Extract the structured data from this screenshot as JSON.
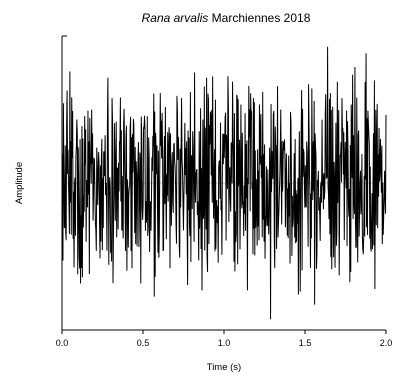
{
  "chart_data": {
    "type": "line",
    "title_species": "Rana arvalis",
    "title_rest": " Marchiennes 2018",
    "xlabel": "Time (s)",
    "ylabel": "Amplitude",
    "xlim": [
      0.0,
      2.0
    ],
    "ylim": [
      -1.0,
      1.0
    ],
    "x_ticks": [
      "0.0",
      "0.5",
      "1.0",
      "1.5",
      "2.0"
    ],
    "x_tick_values": [
      0.0,
      0.5,
      1.0,
      1.5,
      2.0
    ],
    "grid": false,
    "legend": "none",
    "line_color": "#000000",
    "baseline_color": "#bbbbbb",
    "signal": {
      "duration_s": 2.0,
      "sample_count": 700,
      "peak_amplitude": 0.95,
      "description_shape": "dense noise-like oscillogram"
    }
  }
}
